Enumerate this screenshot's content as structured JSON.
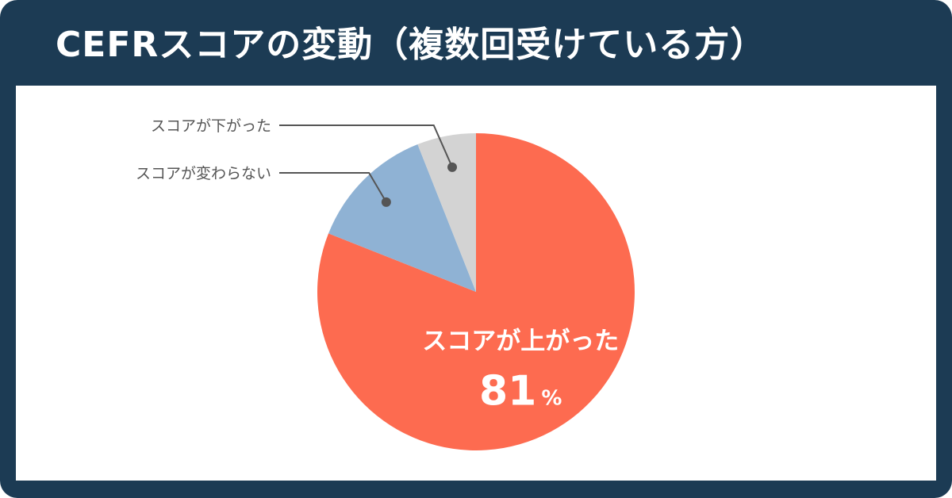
{
  "header": {
    "title": "CEFRスコアの変動（複数回受けている方）"
  },
  "chart_data": {
    "type": "pie",
    "title": "CEFRスコアの変動（複数回受けている方）",
    "unit": "%",
    "slices": [
      {
        "label": "スコアが上がった",
        "value": 81,
        "color": "#fd6b50",
        "value_text": "81"
      },
      {
        "label": "スコアが変わらない",
        "value": 13,
        "color": "#8fb2d4"
      },
      {
        "label": "スコアが下がった",
        "value": 6,
        "color": "#d3d3d3"
      }
    ]
  }
}
